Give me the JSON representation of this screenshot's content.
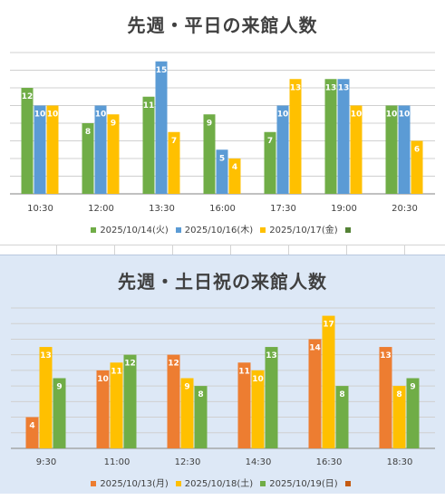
{
  "chart_data": [
    {
      "type": "bar",
      "title": "先週・平日の来館人数",
      "categories": [
        "10:30",
        "12:00",
        "13:30",
        "16:00",
        "17:30",
        "19:00",
        "20:30"
      ],
      "series": [
        {
          "name": "2025/10/14(火)",
          "color": "#70ad47",
          "values": [
            12,
            8,
            11,
            9,
            7,
            13,
            10
          ]
        },
        {
          "name": "2025/10/16(木)",
          "color": "#5b9bd5",
          "values": [
            10,
            10,
            15,
            5,
            10,
            13,
            10
          ]
        },
        {
          "name": "2025/10/17(金)",
          "color": "#ffc000",
          "values": [
            10,
            9,
            7,
            4,
            13,
            10,
            6
          ]
        }
      ],
      "extra_legend_color": "#548235",
      "ylim": [
        0,
        16
      ],
      "grid": true,
      "legend": "bottom"
    },
    {
      "type": "bar",
      "title": "先週・土日祝の来館人数",
      "categories": [
        "9:30",
        "11:00",
        "12:30",
        "14:30",
        "16:30",
        "18:30"
      ],
      "series": [
        {
          "name": "2025/10/13(月)",
          "color": "#ed7d31",
          "values": [
            4,
            10,
            12,
            11,
            14,
            13
          ]
        },
        {
          "name": "2025/10/18(土)",
          "color": "#ffc000",
          "values": [
            13,
            11,
            9,
            10,
            17,
            8
          ]
        },
        {
          "name": "2025/10/19(日)",
          "color": "#70ad47",
          "values": [
            9,
            12,
            8,
            13,
            8,
            9
          ]
        }
      ],
      "extra_legend_color": "#c55a11",
      "ylim": [
        0,
        18
      ],
      "grid": true,
      "legend": "bottom"
    }
  ]
}
